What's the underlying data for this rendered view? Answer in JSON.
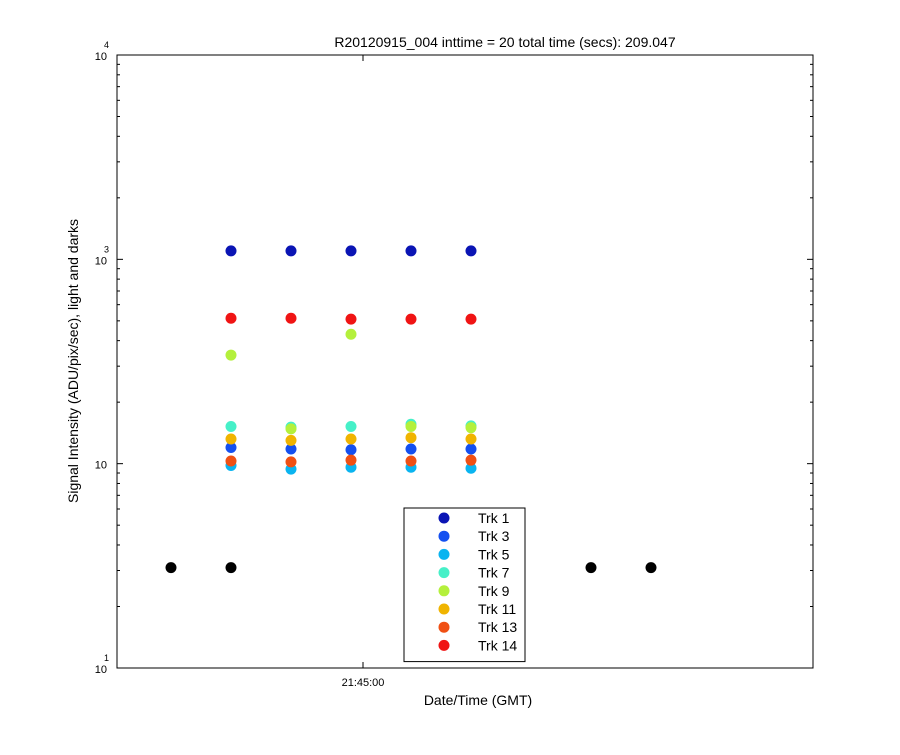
{
  "chart_data": {
    "type": "scatter",
    "title": "R20120915_004 inttime = 20 total time (secs): 209.047",
    "xlabel": "Date/Time (GMT)",
    "ylabel": "Signal Intensity (ADU/pix/sec), light and darks",
    "y_scale": "log",
    "ylim": [
      10,
      10000
    ],
    "y_ticks": [
      {
        "value": 10,
        "base": "10",
        "exp": "1"
      },
      {
        "value": 100,
        "base": "10",
        "exp": ""
      },
      {
        "value": 1000,
        "base": "10",
        "exp": "3"
      },
      {
        "value": 10000,
        "base": "10",
        "exp": "4"
      }
    ],
    "xlim": [
      "21:42:57",
      "21:48:45"
    ],
    "x_ticks": [
      {
        "value": "21:45:00",
        "label": "21:45:00"
      }
    ],
    "grid": false,
    "legend_position": "bottom-center",
    "series": [
      {
        "name": "Trk 1",
        "color": "#0a14b4",
        "x": [
          "21:43:54",
          "21:44:24",
          "21:44:54",
          "21:45:24",
          "21:45:54"
        ],
        "y": [
          1100,
          1100,
          1100,
          1100,
          1100
        ]
      },
      {
        "name": "Trk 3",
        "color": "#1450f0",
        "x": [
          "21:43:54",
          "21:44:24",
          "21:44:54",
          "21:45:24",
          "21:45:54"
        ],
        "y": [
          120,
          118,
          117,
          118,
          118
        ]
      },
      {
        "name": "Trk 5",
        "color": "#0ab4f0",
        "x": [
          "21:43:54",
          "21:44:24",
          "21:44:54",
          "21:45:24",
          "21:45:54"
        ],
        "y": [
          98,
          94,
          96,
          96,
          95
        ]
      },
      {
        "name": "Trk 7",
        "color": "#46f0c8",
        "x": [
          "21:43:54",
          "21:44:24",
          "21:44:54",
          "21:45:24",
          "21:45:54"
        ],
        "y": [
          152,
          151,
          152,
          156,
          153
        ]
      },
      {
        "name": "Trk 9",
        "color": "#b4f03c",
        "x": [
          "21:43:54",
          "21:44:24",
          "21:44:54",
          "21:45:24",
          "21:45:54"
        ],
        "y": [
          340,
          148,
          430,
          152,
          150
        ]
      },
      {
        "name": "Trk 11",
        "color": "#f0b400",
        "x": [
          "21:43:54",
          "21:44:24",
          "21:44:54",
          "21:45:24",
          "21:45:54"
        ],
        "y": [
          132,
          130,
          132,
          134,
          132
        ]
      },
      {
        "name": "Trk 13",
        "color": "#f05014",
        "x": [
          "21:43:54",
          "21:44:24",
          "21:44:54",
          "21:45:24",
          "21:45:54"
        ],
        "y": [
          103,
          102,
          104,
          103,
          104
        ]
      },
      {
        "name": "Trk 14",
        "color": "#f01414",
        "x": [
          "21:43:54",
          "21:44:24",
          "21:44:54",
          "21:45:24",
          "21:45:54"
        ],
        "y": [
          515,
          515,
          510,
          510,
          510
        ]
      }
    ],
    "darks": {
      "color": "#000000",
      "x": [
        "21:43:24",
        "21:43:54",
        "21:46:54",
        "21:47:24"
      ],
      "y": [
        31,
        31,
        31,
        31
      ]
    }
  }
}
